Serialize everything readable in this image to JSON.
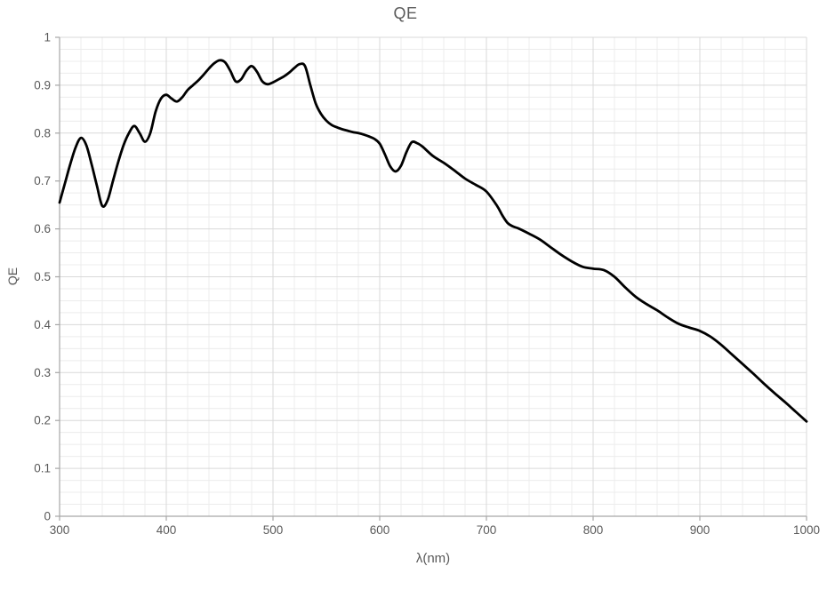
{
  "chart_data": {
    "type": "line",
    "title": "QE",
    "xlabel": "λ(nm)",
    "ylabel": "QE",
    "xlim": [
      300,
      1000
    ],
    "ylim": [
      0,
      1
    ],
    "x_major_step": 100,
    "x_minor_step": 20,
    "y_major_step": 0.1,
    "y_minor_step": 0.025,
    "x_tick_labels": [
      "300",
      "400",
      "500",
      "600",
      "700",
      "800",
      "900",
      "1000"
    ],
    "y_tick_labels": [
      "0",
      "0.1",
      "0.2",
      "0.3",
      "0.4",
      "0.5",
      "0.6",
      "0.7",
      "0.8",
      "0.9",
      "1"
    ],
    "grid": true,
    "legend_position": "none",
    "line_color": "#000000",
    "major_grid_color": "#d9d9d9",
    "minor_grid_color": "#ececec",
    "axis_color": "#a6a6a6",
    "text_color": "#595959",
    "series": [
      {
        "name": "QE",
        "x": [
          300,
          305,
          310,
          315,
          320,
          325,
          330,
          335,
          340,
          345,
          350,
          355,
          360,
          365,
          370,
          375,
          380,
          385,
          390,
          395,
          400,
          405,
          410,
          415,
          420,
          425,
          430,
          435,
          440,
          445,
          450,
          455,
          460,
          465,
          470,
          475,
          480,
          485,
          490,
          495,
          500,
          505,
          510,
          515,
          520,
          525,
          530,
          535,
          540,
          545,
          550,
          555,
          560,
          565,
          570,
          575,
          580,
          585,
          590,
          595,
          600,
          605,
          610,
          615,
          620,
          625,
          630,
          635,
          640,
          650,
          660,
          670,
          680,
          690,
          700,
          710,
          715,
          720,
          725,
          730,
          740,
          750,
          760,
          770,
          780,
          790,
          800,
          810,
          820,
          830,
          840,
          850,
          860,
          870,
          880,
          890,
          900,
          910,
          920,
          930,
          940,
          950,
          960,
          970,
          980,
          990,
          1000
        ],
        "y": [
          0.655,
          0.695,
          0.735,
          0.77,
          0.79,
          0.775,
          0.735,
          0.69,
          0.648,
          0.66,
          0.7,
          0.74,
          0.775,
          0.8,
          0.815,
          0.8,
          0.782,
          0.8,
          0.845,
          0.872,
          0.88,
          0.872,
          0.866,
          0.875,
          0.89,
          0.9,
          0.91,
          0.922,
          0.935,
          0.946,
          0.952,
          0.948,
          0.93,
          0.908,
          0.912,
          0.93,
          0.94,
          0.928,
          0.908,
          0.902,
          0.906,
          0.912,
          0.918,
          0.926,
          0.936,
          0.944,
          0.94,
          0.9,
          0.862,
          0.84,
          0.826,
          0.817,
          0.812,
          0.808,
          0.805,
          0.802,
          0.8,
          0.797,
          0.793,
          0.788,
          0.778,
          0.755,
          0.73,
          0.72,
          0.732,
          0.76,
          0.781,
          0.779,
          0.772,
          0.752,
          0.738,
          0.722,
          0.705,
          0.692,
          0.678,
          0.648,
          0.628,
          0.612,
          0.605,
          0.601,
          0.59,
          0.578,
          0.562,
          0.546,
          0.532,
          0.521,
          0.517,
          0.514,
          0.5,
          0.478,
          0.458,
          0.443,
          0.43,
          0.415,
          0.402,
          0.394,
          0.387,
          0.375,
          0.358,
          0.338,
          0.318,
          0.298,
          0.277,
          0.257,
          0.238,
          0.218,
          0.198
        ]
      }
    ]
  }
}
